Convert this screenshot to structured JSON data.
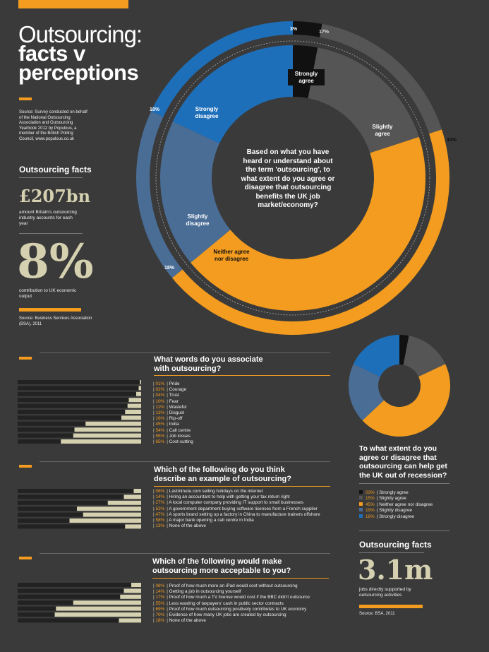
{
  "colors": {
    "orange": "#f39c1f",
    "blue": "#1e6fba",
    "gray": "#555555",
    "black": "#111111",
    "cream": "#d4d0b0",
    "bg": "#3a3a3a"
  },
  "header": {
    "title_line1": "Outsourcing:",
    "title_line2": "facts v",
    "title_line3": "perceptions"
  },
  "source_note": "Source: Survey conducted on behalf of the National Outsourcing Association and Outsourcing Yearbook 2012 by Populous, a member of the British Polling Council, www.populous.co.uk",
  "facts_left": {
    "heading": "Outsourcing facts",
    "stat1": "£207bn",
    "stat1_desc": "amount Britain's outsourcing industry accounts for each year",
    "stat2": "8%",
    "stat2_desc": "contribution to UK economic output",
    "source": "Source: Business Services Association (BSA), 2011"
  },
  "main_donut": {
    "question": "Based on what you have heard or understand about the term 'outsourcing', to what extent do you agree or disagree that outsourcing benefits the UK job market/economy?",
    "inner_labels": {
      "strongly_agree": "Strongly agree",
      "slightly_agree": "Slightly agree",
      "neither": "Neither agree nor disagree",
      "slightly_disagree": "Slightly disagree",
      "strongly_disagree": "Strongly disagree"
    },
    "outer_pcts": {
      "a": "3%",
      "b": "17%",
      "c": "44%",
      "d": "18%",
      "e": "18%"
    }
  },
  "facts_right": {
    "heading": "Outsourcing facts",
    "stat": "3.1m",
    "stat_desc": "jobs directly supported by outsourcing activities",
    "source": "Source: BSA, 2011"
  },
  "chart_data": [
    {
      "type": "pie",
      "title": "Based on what you have heard or understand about the term 'outsourcing', to what extent do you agree or disagree that outsourcing benefits the UK job market/economy?",
      "categories": [
        "Strongly agree",
        "Slightly agree",
        "Neither agree nor disagree",
        "Slightly disagree",
        "Strongly disagree"
      ],
      "values": [
        3,
        17,
        44,
        18,
        18
      ]
    },
    {
      "type": "bar",
      "title": "What words do you associate with outsourcing?",
      "categories": [
        "Pride",
        "Courage",
        "Trust",
        "Fear",
        "Wasteful",
        "Disgust",
        "Rip-off",
        "India",
        "Call centre",
        "Job losses",
        "Cost-cutting"
      ],
      "values": [
        1,
        2,
        4,
        10,
        11,
        13,
        16,
        45,
        54,
        55,
        65
      ],
      "labels": [
        "01%",
        "02%",
        "04%",
        "10%",
        "11%",
        "13%",
        "16%",
        "45%",
        "54%",
        "55%",
        "65%"
      ]
    },
    {
      "type": "bar",
      "title": "Which of the following do you think describe an example of outsourcing?",
      "categories": [
        "Lastminute.com selling holidays on the internet",
        "Hiring an accountant to help with getting your tax return right",
        "A local computer company providing IT support to small businesses",
        "A government department buying software licenses from a French supplier",
        "A sports brand setting up a factory in China to manufacture trainers offshore",
        "A major bank opening a call centre in India",
        "None of the above"
      ],
      "values": [
        6,
        14,
        27,
        52,
        47,
        58,
        13
      ],
      "labels": [
        "06%",
        "14%",
        "27%",
        "52%",
        "47%",
        "58%",
        "13%"
      ]
    },
    {
      "type": "bar",
      "title": "Which of the following would make outsourcing more acceptable to you?",
      "categories": [
        "Proof of how much more an iPad would cost without outsourcing",
        "Getting a job in outsourcing yourself",
        "Proof of how much a TV license would cost if the BBC didn't outsource",
        "Less wasting of taxpayers' cash in public sector contracts",
        "Proof of how much outsourcing positively contributes to UK economy",
        "Evidence of how many UK jobs are created by outsourcing",
        "None of the above"
      ],
      "values": [
        8,
        14,
        17,
        55,
        69,
        70,
        18
      ],
      "labels": [
        "08%",
        "14%",
        "17%",
        "55%",
        "69%",
        "70%",
        "18%"
      ]
    },
    {
      "type": "pie",
      "title": "To what extent do you agree or disagree that outsourcing can help get the UK out of recession?",
      "categories": [
        "Strongly agree",
        "Slightly agree",
        "Neither agree nor disagree",
        "Slightly disagree",
        "Strongly disagree"
      ],
      "values": [
        3,
        15,
        45,
        19,
        18
      ],
      "labels": [
        "03%",
        "15%",
        "45%",
        "19%",
        "18%"
      ]
    }
  ]
}
